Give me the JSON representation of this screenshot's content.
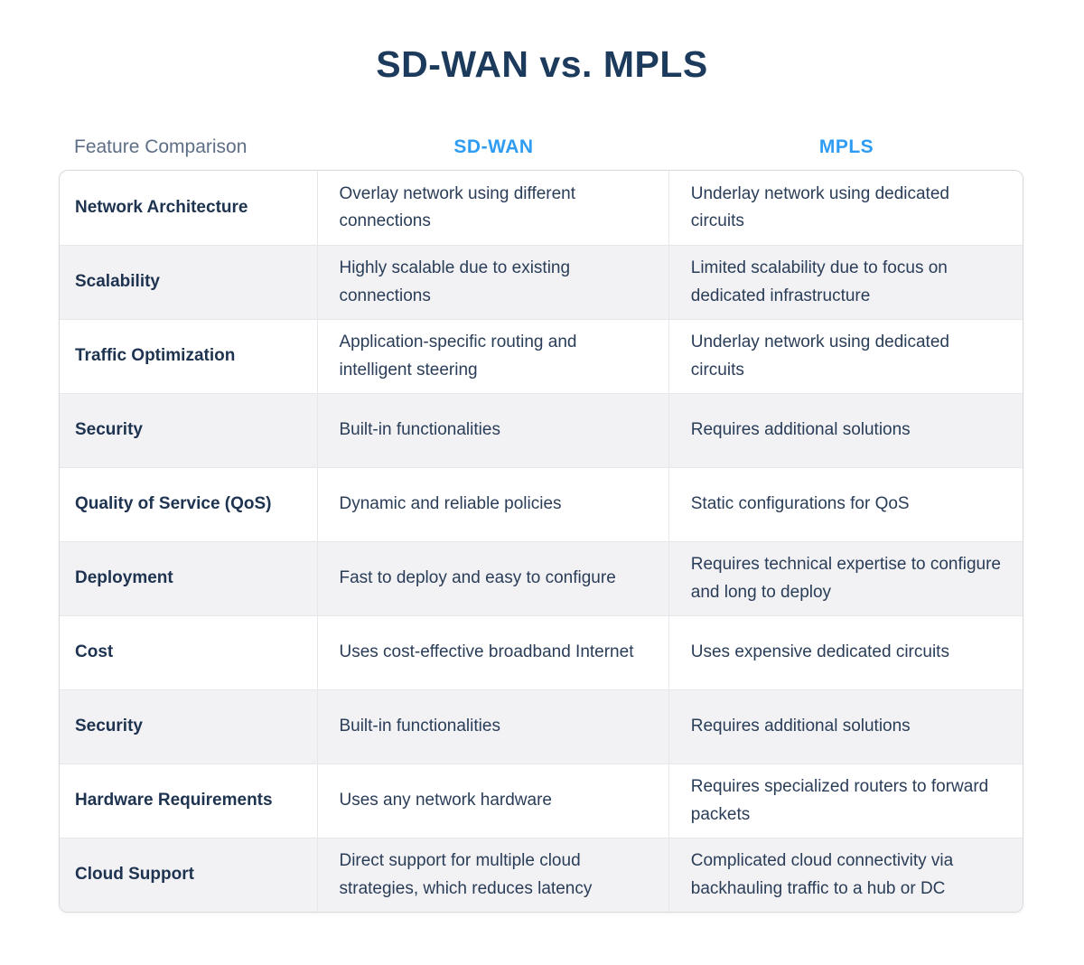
{
  "page_title": "SD-WAN vs. MPLS",
  "colors": {
    "title_text": "#1b3a5c",
    "header_accent": "#2e9cf3",
    "header_feature_text": "#5d6e85",
    "body_text": "#2a3d58",
    "feature_text": "#1e3350",
    "row_alt_background": "#f2f2f4",
    "card_border": "#d8dade",
    "divider": "#e6e7ea"
  },
  "chart_data": {
    "type": "table",
    "title": "SD-WAN vs. MPLS",
    "columns": [
      "Feature Comparison",
      "SD-WAN",
      "MPLS"
    ],
    "rows": [
      {
        "feature": "Network Architecture",
        "sdwan": "Overlay network using different connections",
        "mpls": "Underlay network using dedicated circuits"
      },
      {
        "feature": "Scalability",
        "sdwan": "Highly scalable due to existing connections",
        "mpls": "Limited scalability due to focus on dedicated infrastructure"
      },
      {
        "feature": "Traffic Optimization",
        "sdwan": "Application-specific routing and intelligent steering",
        "mpls": "Underlay network using dedicated circuits"
      },
      {
        "feature": "Security",
        "sdwan": "Built-in functionalities",
        "mpls": "Requires additional solutions"
      },
      {
        "feature": "Quality of Service (QoS)",
        "sdwan": "Dynamic and reliable policies",
        "mpls": "Static configurations for QoS"
      },
      {
        "feature": "Deployment",
        "sdwan": "Fast to deploy and easy to configure",
        "mpls": "Requires technical expertise to configure and long to deploy"
      },
      {
        "feature": "Cost",
        "sdwan": "Uses cost-effective broadband Internet",
        "mpls": "Uses expensive dedicated circuits"
      },
      {
        "feature": "Security",
        "sdwan": "Built-in functionalities",
        "mpls": "Requires additional solutions"
      },
      {
        "feature": "Hardware Requirements",
        "sdwan": "Uses any network hardware",
        "mpls": "Requires specialized routers to forward packets"
      },
      {
        "feature": "Cloud Support",
        "sdwan": "Direct support for multiple cloud strategies, which reduces latency",
        "mpls": "Complicated cloud connectivity via backhauling traffic to a hub or DC"
      }
    ]
  }
}
